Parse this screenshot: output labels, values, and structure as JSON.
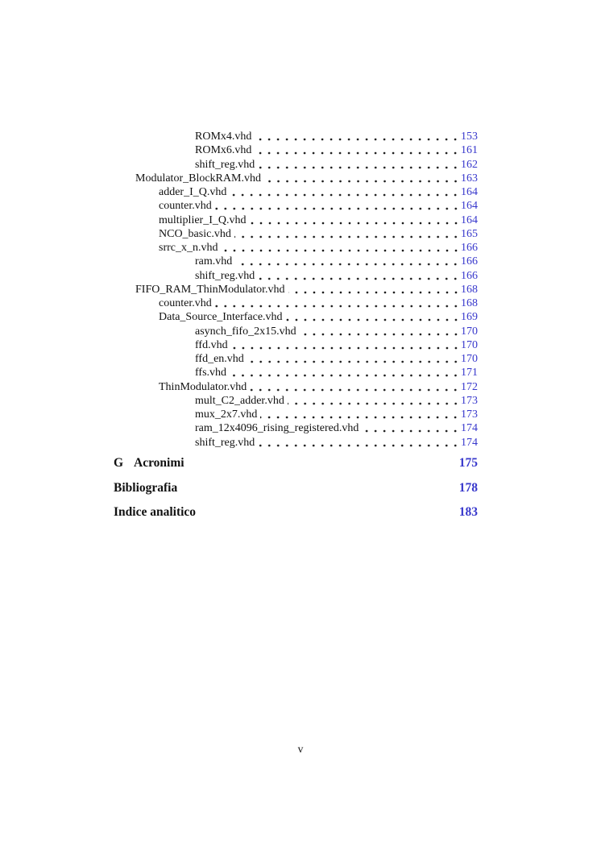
{
  "document": {
    "folio": "v",
    "link_color": "#3838cc"
  },
  "toc": {
    "entries": [
      {
        "label": "ROMx4.vhd",
        "page": "153",
        "level": 3
      },
      {
        "label": "ROMx6.vhd",
        "page": "161",
        "level": 3
      },
      {
        "label": "shift_reg.vhd",
        "page": "162",
        "level": 3
      },
      {
        "label": "Modulator_BlockRAM.vhd",
        "page": "163",
        "level": 1
      },
      {
        "label": "adder_I_Q.vhd",
        "page": "164",
        "level": 2
      },
      {
        "label": "counter.vhd",
        "page": "164",
        "level": 2
      },
      {
        "label": "multiplier_I_Q.vhd",
        "page": "164",
        "level": 2
      },
      {
        "label": "NCO_basic.vhd",
        "page": "165",
        "level": 2
      },
      {
        "label": "srrc_x_n.vhd",
        "page": "166",
        "level": 2
      },
      {
        "label": "ram.vhd",
        "page": "166",
        "level": 3
      },
      {
        "label": "shift_reg.vhd",
        "page": "166",
        "level": 3
      },
      {
        "label": "FIFO_RAM_ThinModulator.vhd",
        "page": "168",
        "level": 1
      },
      {
        "label": "counter.vhd",
        "page": "168",
        "level": 2
      },
      {
        "label": "Data_Source_Interface.vhd",
        "page": "169",
        "level": 2
      },
      {
        "label": "asynch_fifo_2x15.vhd",
        "page": "170",
        "level": 3
      },
      {
        "label": "ffd.vhd",
        "page": "170",
        "level": 3
      },
      {
        "label": "ffd_en.vhd",
        "page": "170",
        "level": 3
      },
      {
        "label": "ffs.vhd",
        "page": "171",
        "level": 3
      },
      {
        "label": "ThinModulator.vhd",
        "page": "172",
        "level": 2
      },
      {
        "label": "mult_C2_adder.vhd",
        "page": "173",
        "level": 3
      },
      {
        "label": "mux_2x7.vhd",
        "page": "173",
        "level": 3
      },
      {
        "label": "ram_12x4096_rising_registered.vhd",
        "page": "174",
        "level": 3
      },
      {
        "label": "shift_reg.vhd",
        "page": "174",
        "level": 3
      }
    ],
    "sections": [
      {
        "number": "G",
        "title": "Acronimi",
        "page": "175"
      },
      {
        "number": "",
        "title": "Bibliografia",
        "page": "178"
      },
      {
        "number": "",
        "title": "Indice analitico",
        "page": "183"
      }
    ]
  }
}
